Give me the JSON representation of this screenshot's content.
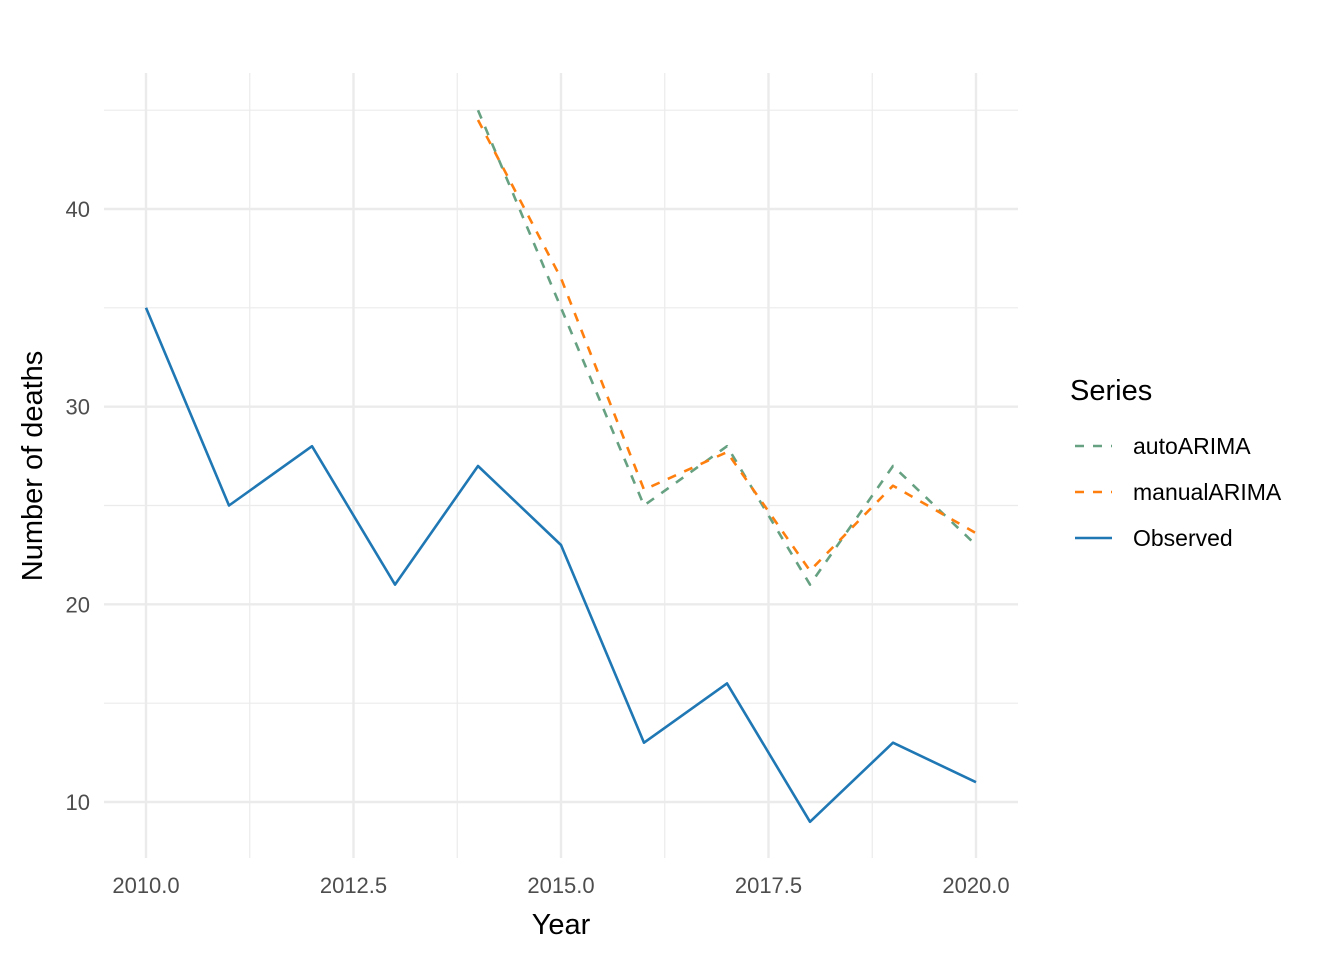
{
  "chart_data": {
    "type": "line",
    "xlabel": "Year",
    "ylabel": "Number of deaths",
    "xlim": [
      2009.5,
      2020.5
    ],
    "ylim": [
      7.8,
      46.5
    ],
    "x_ticks": [
      2010.0,
      2012.5,
      2015.0,
      2017.5,
      2020.0
    ],
    "x_tick_labels": [
      "2010.0",
      "2012.5",
      "2015.0",
      "2017.5",
      "2020.0"
    ],
    "y_ticks": [
      10,
      20,
      30,
      40
    ],
    "y_tick_labels": [
      "10",
      "20",
      "30",
      "40"
    ],
    "grid": true,
    "legend": {
      "title": "Series",
      "placement": "right"
    },
    "series": [
      {
        "name": "autoARIMA",
        "color": "#66a182",
        "dash": "dashed",
        "x": [
          2014,
          2015,
          2016,
          2017,
          2018,
          2019,
          2020
        ],
        "y": [
          45.0,
          35.0,
          25.0,
          28.0,
          21.0,
          27.0,
          23.0
        ]
      },
      {
        "name": "manualARIMA",
        "color": "#ff7f0e",
        "dash": "dashed",
        "x": [
          2014,
          2015,
          2016,
          2017,
          2018,
          2019,
          2020
        ],
        "y": [
          44.5,
          36.5,
          25.8,
          27.7,
          21.7,
          26.0,
          23.6
        ]
      },
      {
        "name": "Observed",
        "color": "#1f77b4",
        "dash": "solid",
        "x": [
          2010,
          2011,
          2012,
          2013,
          2014,
          2015,
          2016,
          2017,
          2018,
          2019,
          2020
        ],
        "y": [
          35,
          25,
          28,
          21,
          27,
          23,
          13,
          16,
          9,
          13,
          11
        ]
      }
    ]
  }
}
